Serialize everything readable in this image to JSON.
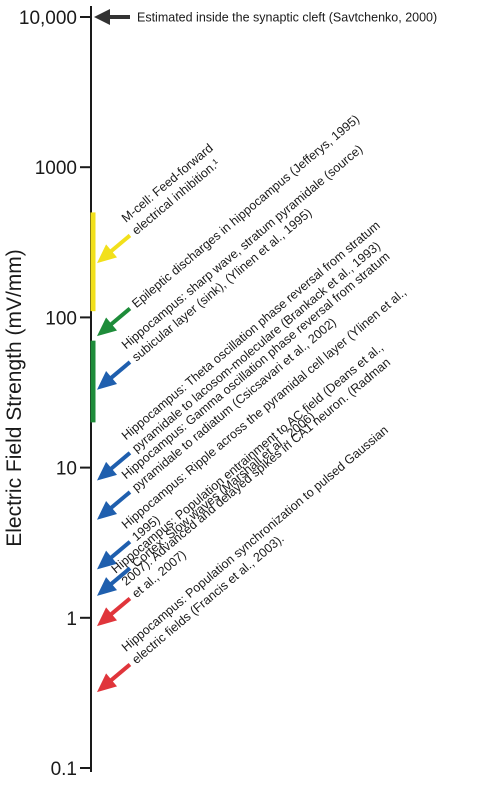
{
  "chart_data": {
    "type": "annotated-log-scale",
    "ylabel": "Electric Field Strength (mV/mm)",
    "yscale": "log",
    "ylim": [
      0.1,
      10000
    ],
    "y_ticks": [
      {
        "value": 0.1,
        "label": "0.1"
      },
      {
        "value": 1,
        "label": "1"
      },
      {
        "value": 10,
        "label": "10"
      },
      {
        "value": 100,
        "label": "100"
      },
      {
        "value": 1000,
        "label": "1000"
      },
      {
        "value": 10000,
        "label": "10,000"
      }
    ],
    "ranges": [
      {
        "y_min": 110,
        "y_max": 500,
        "color": "#f2e01b"
      },
      {
        "y_min": 20,
        "y_max": 70,
        "color": "#1e8c3a"
      }
    ],
    "annotations": [
      {
        "value": 10000,
        "color": "#333333",
        "lines": [
          "Estimated inside the synaptic cleft (Savtchenko, 2000)"
        ]
      },
      {
        "value": 230,
        "color": "#f2e01b",
        "lines": [
          "M-cell: Feed-forward",
          "electrical inhibition.¹"
        ]
      },
      {
        "value": 75,
        "color": "#1e8c3a",
        "lines": [
          "Epileptic discharges in hippocampus (Jefferys, 1995)"
        ]
      },
      {
        "value": 33,
        "color": "#1f5fae",
        "lines": [
          "Hippocampus: sharp wave, stratum pyramidale (source)",
          "subicular layer (sink), (Ylinen et al., 1995)"
        ]
      },
      {
        "value": 8.2,
        "color": "#1f5fae",
        "lines": [
          "Hippocampus: Theta oscillation phase reversal from stratum",
          "pyramidale to lacosom-moleculare (Brankack et al., 1993)"
        ]
      },
      {
        "value": 4.5,
        "color": "#1f5fae",
        "lines": [
          "Hippocampus: Gamma oscillation phase reversal from stratum",
          "pyramidale to radiatum (Csicsavari et al., 2002)"
        ]
      },
      {
        "value": 2.1,
        "color": "#1f5fae",
        "lines": [
          "Hippocampus: Ripple across the pyramidal cell layer (Ylinen et al.,",
          "1995)"
        ]
      },
      {
        "value": 1.4,
        "color": "#1f5fae",
        "lines": [
          "Cortex: Slow waves (Marshall et al., 2006)"
        ]
      },
      {
        "value": 0.88,
        "color": "#e0353b",
        "lines": [
          "Hippocampus: Population entrainment to AC field (Deans et al.,",
          "2007). Advanced and delayed spikes in CA1 neuron. (Radman",
          "et al., 2007)"
        ]
      },
      {
        "value": 0.32,
        "color": "#e0353b",
        "lines": [
          "Hippocampus: Population synchronization to pulsed Gaussian",
          "electric fields (Francis et al., 2003)."
        ]
      }
    ]
  }
}
